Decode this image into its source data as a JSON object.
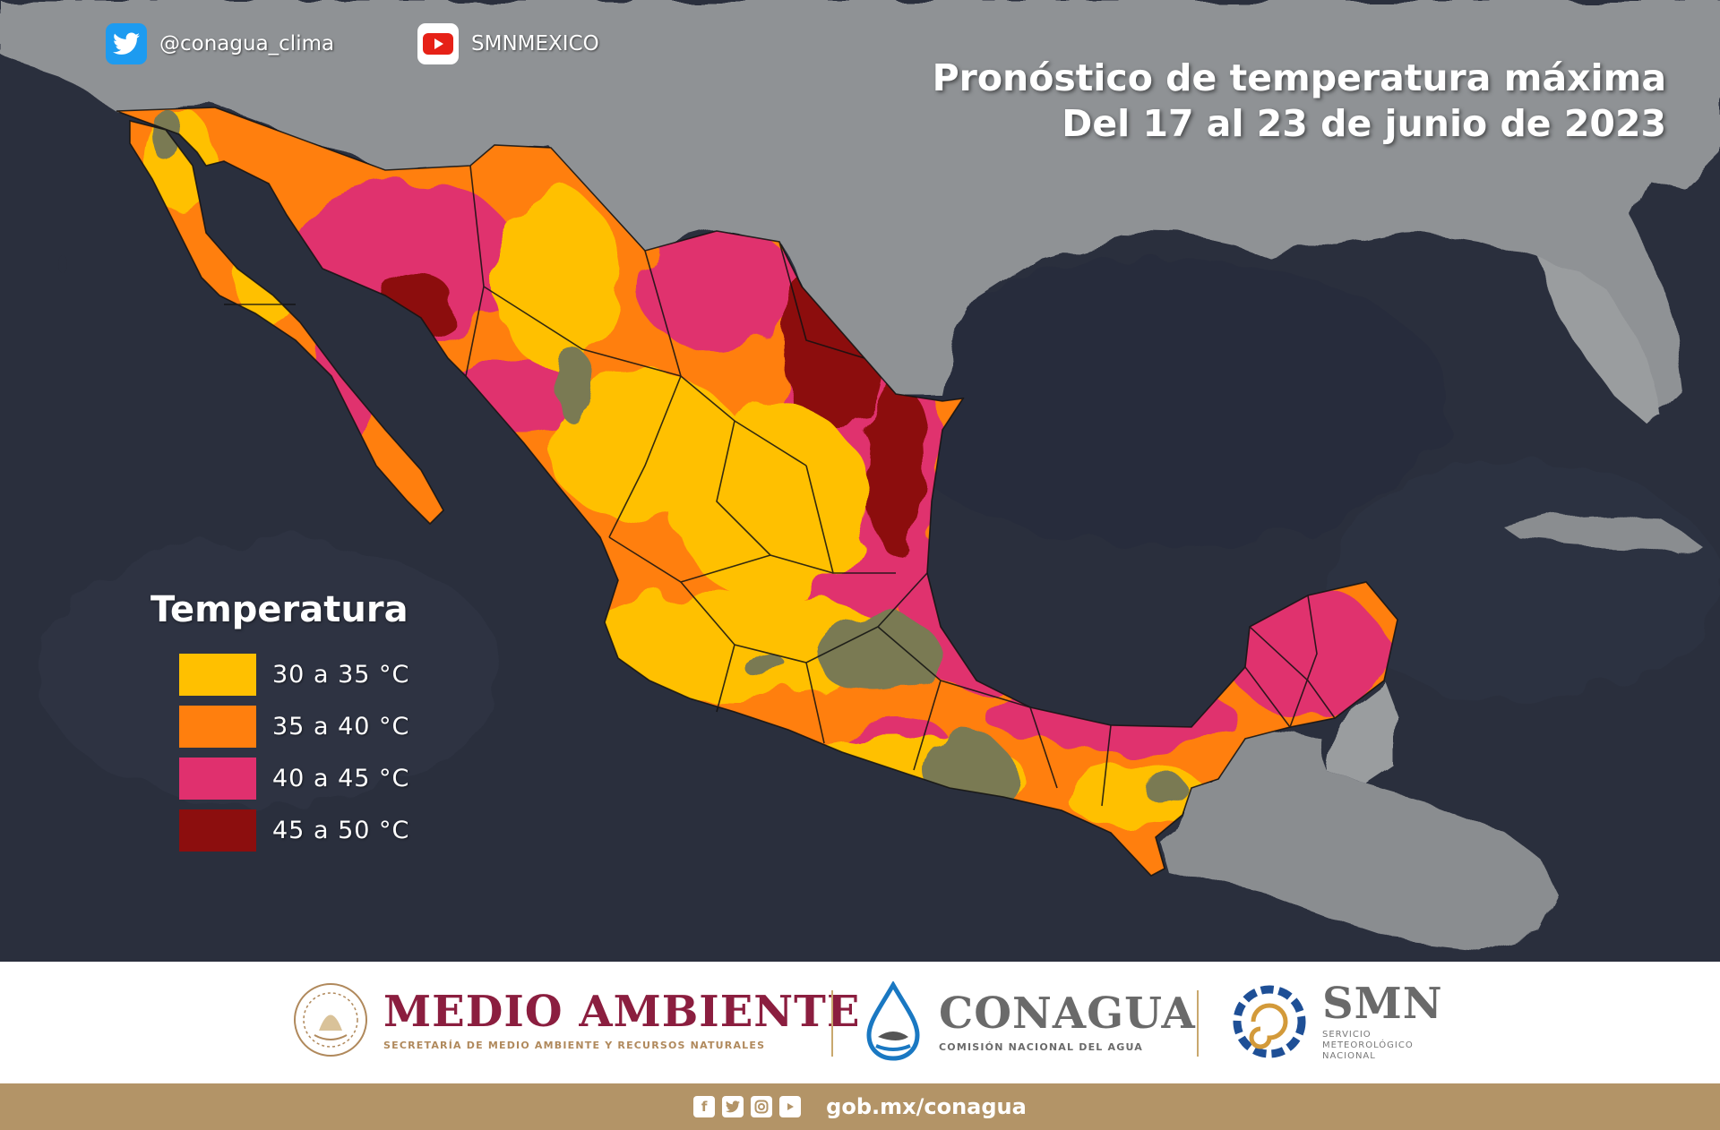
{
  "header": {
    "twitter_handle": "@conagua_clima",
    "youtube_handle": "SMNMEXICO"
  },
  "title": {
    "line1": "Pronóstico de temperatura máxima",
    "line2": "Del 17 al 23 de junio de 2023"
  },
  "legend": {
    "title": "Temperatura",
    "items": [
      {
        "label": "30 a 35 °C",
        "color": "#ffc000"
      },
      {
        "label": "35 a 40 °C",
        "color": "#ff7f0e"
      },
      {
        "label": "40 a 45 °C",
        "color": "#e0306e"
      },
      {
        "label": "45 a 50 °C",
        "color": "#8c0e0e"
      }
    ]
  },
  "colors": {
    "ocean": "#2a2f3d",
    "land": "#8a8d90",
    "below_30": "#7a7a52"
  },
  "footer": {
    "medio_ambiente": {
      "name": "MEDIO AMBIENTE",
      "subtitle": "SECRETARÍA DE MEDIO AMBIENTE Y RECURSOS NATURALES"
    },
    "conagua": {
      "name": "CONAGUA",
      "subtitle": "COMISIÓN NACIONAL DEL AGUA"
    },
    "smn": {
      "name": "SMN",
      "subtitle": "SERVICIO METEOROLÓGICO NACIONAL"
    },
    "url": "gob.mx/conagua",
    "social_icons": [
      "facebook-icon",
      "twitter-icon",
      "instagram-icon",
      "youtube-icon"
    ],
    "band_color": "#b39467"
  }
}
